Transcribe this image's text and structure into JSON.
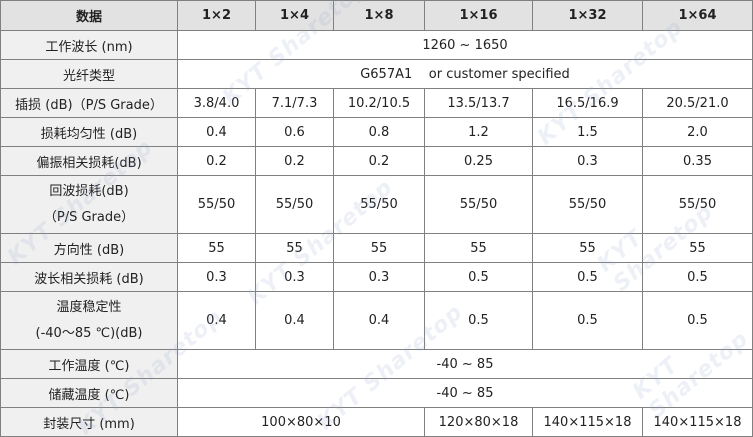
{
  "header": [
    "数据",
    "1×2",
    "1×4",
    "1×8",
    "1×16",
    "1×32",
    "1×64"
  ],
  "rows": {
    "wavelength": {
      "label": "工作波长 (nm)",
      "value": "1260 ~ 1650"
    },
    "fiber": {
      "label": "光纤类型",
      "value": "G657A1    or customer specified"
    },
    "insertion": {
      "label": "插损 (dB)（P/S Grade）",
      "values": [
        "3.8/4.0",
        "7.1/7.3",
        "10.2/10.5",
        "13.5/13.7",
        "16.5/16.9",
        "20.5/21.0"
      ]
    },
    "uniformity": {
      "label": "损耗均匀性 (dB)",
      "values": [
        "0.4",
        "0.6",
        "0.8",
        "1.2",
        "1.5",
        "2.0"
      ]
    },
    "pdl": {
      "label": "偏振相关损耗(dB)",
      "values": [
        "0.2",
        "0.2",
        "0.2",
        "0.25",
        "0.3",
        "0.35"
      ]
    },
    "return_loss": {
      "label_line1": "回波损耗(dB)",
      "label_line2": "（P/S Grade）",
      "values": [
        "55/50",
        "55/50",
        "55/50",
        "55/50",
        "55/50",
        "55/50"
      ]
    },
    "directivity": {
      "label": "方向性 (dB)",
      "values": [
        "55",
        "55",
        "55",
        "55",
        "55",
        "55"
      ]
    },
    "wdl": {
      "label": "波长相关损耗 (dB)",
      "values": [
        "0.3",
        "0.3",
        "0.3",
        "0.5",
        "0.5",
        "0.5"
      ]
    },
    "temp_stability": {
      "label_line1": "温度稳定性",
      "label_line2": "(-40～85 ℃)(dB)",
      "values": [
        "0.4",
        "0.4",
        "0.4",
        "0.5",
        "0.5",
        "0.5"
      ]
    },
    "op_temp": {
      "label": "工作温度 (℃)",
      "value": "-40 ~ 85"
    },
    "storage_temp": {
      "label": "储藏温度 (℃)",
      "value": "-40 ~ 85"
    },
    "package": {
      "label": "封装尺寸 (mm)",
      "values": [
        "100×80×10",
        "120×80×18",
        "140×115×18",
        "140×115×18"
      ]
    }
  },
  "colors": {
    "header_bg": "#e2e2e2",
    "label_bg": "#f0f0f0",
    "border": "#808080"
  }
}
